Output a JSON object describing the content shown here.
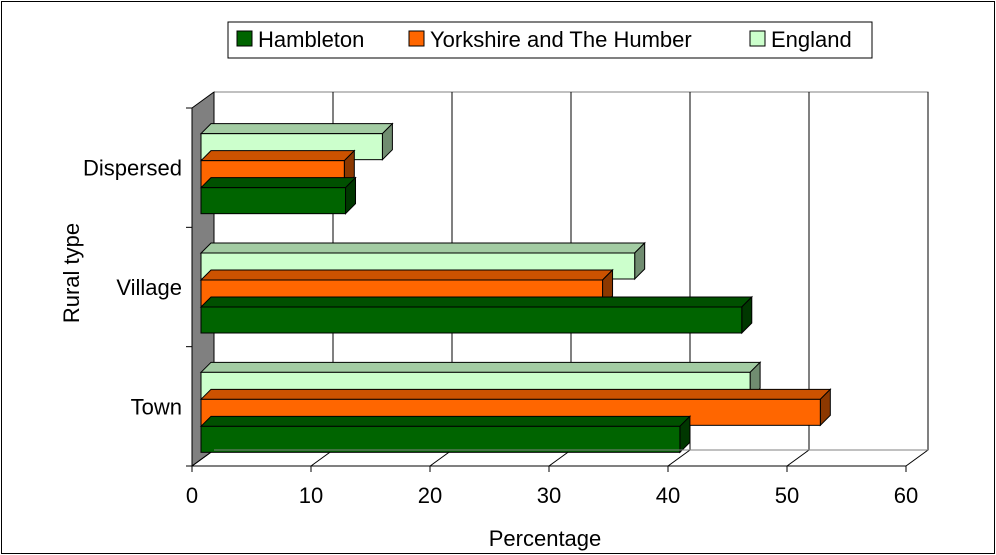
{
  "chart_data": {
    "type": "bar",
    "orientation": "horizontal",
    "three_d": true,
    "title": "",
    "xlabel": "Percentage",
    "ylabel": "Rural type",
    "xlim": [
      0,
      60
    ],
    "x_ticks": [
      "0",
      "10",
      "20",
      "30",
      "40",
      "50",
      "60"
    ],
    "categories": [
      "Town",
      "Village",
      "Dispersed"
    ],
    "series": [
      {
        "name": "Hambleton",
        "color": "#006400",
        "values": [
          41,
          46.2,
          12.9
        ]
      },
      {
        "name": "Yorkshire and The Humber",
        "color": "#ff6600",
        "values": [
          52.8,
          34.5,
          12.8
        ]
      },
      {
        "name": "England",
        "color": "#ccffcc",
        "values": [
          46.9,
          37.2,
          16
        ]
      }
    ],
    "grid": "vertical",
    "legend_position": "top"
  }
}
